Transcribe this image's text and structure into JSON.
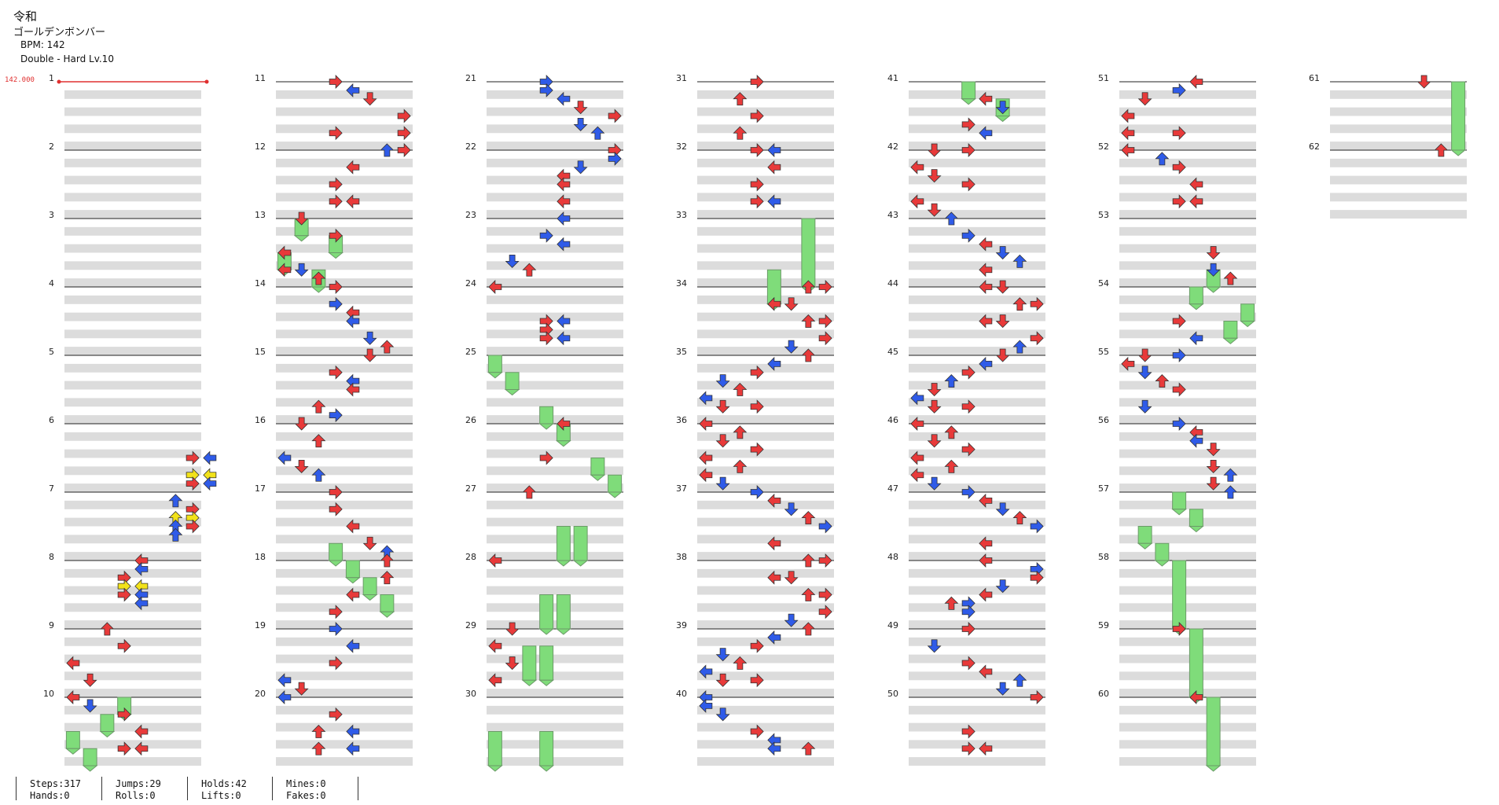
{
  "song": {
    "group": "令和",
    "title": "ゴールデンボンバー",
    "bpm_label": "BPM: 142",
    "difficulty_label": "Double - Hard  Lv.10"
  },
  "bpm_marker": "142.000",
  "measures": {
    "labels": [
      "1",
      "2",
      "3",
      "4",
      "5",
      "6",
      "7",
      "8",
      "9",
      "10",
      "11",
      "12",
      "13",
      "14",
      "15",
      "16",
      "17",
      "18",
      "19",
      "20",
      "21",
      "22",
      "23",
      "24",
      "25",
      "26",
      "27",
      "28",
      "29",
      "30",
      "31",
      "32",
      "33",
      "34",
      "35",
      "36",
      "37",
      "38",
      "39",
      "40",
      "41",
      "42",
      "43",
      "44",
      "45",
      "46",
      "47",
      "48",
      "49",
      "50",
      "51",
      "52",
      "53",
      "54",
      "55",
      "56",
      "57",
      "58",
      "59",
      "60",
      "61",
      "62"
    ],
    "count": 62,
    "per_column": 10
  },
  "stats": {
    "steps": "Steps:317",
    "hands": "Hands:0",
    "jumps": "Jumps:29",
    "rolls": "Rolls:0",
    "holds": "Holds:42",
    "lifts": "Lifts:0",
    "mines": "Mines:0",
    "fakes": "Fakes:0"
  },
  "colors": {
    "quarter_note": "#e83a3a",
    "eighth_note": "#2f5be8",
    "sixteenth_note": "#f2e21a",
    "hold_body": "#7fdc7a",
    "stripe": "#dcdcdc",
    "bpm_line": "#e03030"
  },
  "notes": [
    [
      5.5,
      7,
      "r"
    ],
    [
      5.5,
      8,
      "b"
    ],
    [
      5.75,
      7,
      "y"
    ],
    [
      5.75,
      8,
      "y"
    ],
    [
      5.875,
      7,
      "r"
    ],
    [
      5.875,
      8,
      "b"
    ],
    [
      6.125,
      6,
      "b"
    ],
    [
      6.25,
      7,
      "r"
    ],
    [
      6.375,
      6,
      "y"
    ],
    [
      6.375,
      7,
      "y"
    ],
    [
      6.5,
      6,
      "b"
    ],
    [
      6.5,
      7,
      "r"
    ],
    [
      6.625,
      6,
      "b"
    ],
    [
      7.0,
      4,
      "r"
    ],
    [
      7.125,
      4,
      "b"
    ],
    [
      7.25,
      3,
      "r"
    ],
    [
      7.375,
      3,
      "y"
    ],
    [
      7.375,
      4,
      "y"
    ],
    [
      7.5,
      3,
      "r"
    ],
    [
      7.5,
      4,
      "b"
    ],
    [
      7.625,
      4,
      "b"
    ],
    [
      8.0,
      2,
      "r"
    ],
    [
      8.25,
      3,
      "r"
    ],
    [
      8.5,
      0,
      "r"
    ],
    [
      8.75,
      1,
      "r"
    ],
    [
      9.0,
      0,
      "r"
    ],
    [
      9.125,
      1,
      "b"
    ],
    [
      9.25,
      3,
      "r"
    ],
    [
      9.5,
      4,
      "r"
    ],
    [
      9.75,
      3,
      "r"
    ],
    [
      9.75,
      4,
      "r"
    ],
    [
      10.0,
      3,
      "r"
    ],
    [
      10.125,
      4,
      "b"
    ],
    [
      10.25,
      5,
      "r"
    ],
    [
      10.5,
      7,
      "r"
    ],
    [
      10.75,
      3,
      "r"
    ],
    [
      10.75,
      7,
      "r"
    ],
    [
      11.0,
      6,
      "b"
    ],
    [
      11.0,
      7,
      "r"
    ],
    [
      11.25,
      4,
      "r"
    ],
    [
      11.5,
      3,
      "r"
    ],
    [
      11.75,
      3,
      "r"
    ],
    [
      11.75,
      4,
      "r"
    ],
    [
      12.0,
      1,
      "r"
    ],
    [
      12.25,
      3,
      "r"
    ],
    [
      12.5,
      0,
      "r"
    ],
    [
      12.75,
      0,
      "r"
    ],
    [
      12.75,
      1,
      "b"
    ],
    [
      12.875,
      2,
      "r"
    ],
    [
      13.0,
      3,
      "r"
    ],
    [
      13.25,
      3,
      "b"
    ],
    [
      13.375,
      4,
      "r"
    ],
    [
      13.5,
      4,
      "b"
    ],
    [
      13.75,
      5,
      "b"
    ],
    [
      13.875,
      6,
      "r"
    ],
    [
      14.0,
      5,
      "r"
    ],
    [
      14.25,
      3,
      "r"
    ],
    [
      14.375,
      4,
      "b"
    ],
    [
      14.5,
      4,
      "r"
    ],
    [
      14.75,
      2,
      "r"
    ],
    [
      14.875,
      3,
      "b"
    ],
    [
      15.0,
      1,
      "r"
    ],
    [
      15.25,
      2,
      "r"
    ],
    [
      15.5,
      0,
      "b"
    ],
    [
      15.625,
      1,
      "r"
    ],
    [
      15.75,
      2,
      "b"
    ],
    [
      16.0,
      3,
      "r"
    ],
    [
      16.25,
      3,
      "r"
    ],
    [
      16.5,
      4,
      "r"
    ],
    [
      16.75,
      5,
      "r"
    ],
    [
      16.875,
      6,
      "b"
    ],
    [
      17.0,
      6,
      "r"
    ],
    [
      17.25,
      6,
      "r"
    ],
    [
      17.5,
      4,
      "r"
    ],
    [
      17.75,
      3,
      "r"
    ],
    [
      18.0,
      3,
      "b"
    ],
    [
      18.25,
      4,
      "b"
    ],
    [
      18.5,
      3,
      "r"
    ],
    [
      18.75,
      0,
      "b"
    ],
    [
      18.875,
      1,
      "r"
    ],
    [
      19.0,
      0,
      "b"
    ],
    [
      19.25,
      3,
      "r"
    ],
    [
      19.5,
      2,
      "r"
    ],
    [
      19.5,
      4,
      "b"
    ],
    [
      19.75,
      2,
      "r"
    ],
    [
      19.75,
      4,
      "b"
    ],
    [
      20.0,
      3,
      "b"
    ],
    [
      20.125,
      3,
      "b"
    ],
    [
      20.25,
      4,
      "b"
    ],
    [
      20.375,
      5,
      "r"
    ],
    [
      20.5,
      7,
      "r"
    ],
    [
      20.625,
      5,
      "b"
    ],
    [
      20.75,
      6,
      "b"
    ],
    [
      21.0,
      7,
      "r"
    ],
    [
      21.125,
      7,
      "b"
    ],
    [
      21.25,
      5,
      "b"
    ],
    [
      21.375,
      4,
      "r"
    ],
    [
      21.5,
      4,
      "r"
    ],
    [
      21.75,
      4,
      "r"
    ],
    [
      22.0,
      4,
      "b"
    ],
    [
      22.25,
      3,
      "b"
    ],
    [
      22.375,
      4,
      "b"
    ],
    [
      22.625,
      1,
      "b"
    ],
    [
      22.75,
      2,
      "r"
    ],
    [
      23.0,
      0,
      "r"
    ],
    [
      23.5,
      3,
      "r"
    ],
    [
      23.5,
      4,
      "b"
    ],
    [
      23.625,
      3,
      "r"
    ],
    [
      23.75,
      3,
      "r"
    ],
    [
      23.75,
      4,
      "b"
    ],
    [
      25.0,
      4,
      "r"
    ],
    [
      25.5,
      3,
      "r"
    ],
    [
      26.0,
      2,
      "r"
    ],
    [
      27.0,
      0,
      "r"
    ],
    [
      28.0,
      1,
      "r"
    ],
    [
      28.25,
      0,
      "r"
    ],
    [
      28.5,
      1,
      "r"
    ],
    [
      28.75,
      0,
      "r"
    ],
    [
      30.0,
      3,
      "r"
    ],
    [
      30.25,
      2,
      "r"
    ],
    [
      30.5,
      3,
      "r"
    ],
    [
      30.75,
      2,
      "r"
    ],
    [
      31.0,
      4,
      "b"
    ],
    [
      31.0,
      3,
      "r"
    ],
    [
      31.25,
      4,
      "r"
    ],
    [
      31.5,
      3,
      "r"
    ],
    [
      31.75,
      3,
      "r"
    ],
    [
      31.75,
      4,
      "b"
    ],
    [
      33.0,
      6,
      "r"
    ],
    [
      33.0,
      7,
      "r"
    ],
    [
      33.25,
      4,
      "r"
    ],
    [
      33.25,
      5,
      "r"
    ],
    [
      33.5,
      6,
      "r"
    ],
    [
      33.5,
      7,
      "r"
    ],
    [
      33.75,
      7,
      "r"
    ],
    [
      33.875,
      5,
      "b"
    ],
    [
      34.0,
      6,
      "r"
    ],
    [
      34.125,
      4,
      "b"
    ],
    [
      34.25,
      3,
      "r"
    ],
    [
      34.375,
      1,
      "b"
    ],
    [
      34.5,
      2,
      "r"
    ],
    [
      34.625,
      0,
      "b"
    ],
    [
      34.75,
      3,
      "r"
    ],
    [
      34.75,
      1,
      "r"
    ],
    [
      35.0,
      0,
      "r"
    ],
    [
      35.125,
      2,
      "r"
    ],
    [
      35.25,
      1,
      "r"
    ],
    [
      35.375,
      3,
      "r"
    ],
    [
      35.5,
      0,
      "r"
    ],
    [
      35.625,
      2,
      "r"
    ],
    [
      35.75,
      0,
      "r"
    ],
    [
      35.875,
      1,
      "b"
    ],
    [
      36.0,
      3,
      "b"
    ],
    [
      36.125,
      4,
      "r"
    ],
    [
      36.25,
      5,
      "b"
    ],
    [
      36.375,
      6,
      "r"
    ],
    [
      36.5,
      7,
      "b"
    ],
    [
      36.75,
      4,
      "r"
    ],
    [
      37.0,
      6,
      "r"
    ],
    [
      37.0,
      7,
      "r"
    ],
    [
      37.25,
      4,
      "r"
    ],
    [
      37.25,
      5,
      "r"
    ],
    [
      37.5,
      6,
      "r"
    ],
    [
      37.5,
      7,
      "r"
    ],
    [
      37.75,
      7,
      "r"
    ],
    [
      37.875,
      5,
      "b"
    ],
    [
      38.0,
      6,
      "r"
    ],
    [
      38.125,
      4,
      "b"
    ],
    [
      38.25,
      3,
      "r"
    ],
    [
      38.375,
      1,
      "b"
    ],
    [
      38.5,
      2,
      "r"
    ],
    [
      38.625,
      0,
      "b"
    ],
    [
      38.75,
      3,
      "r"
    ],
    [
      38.75,
      1,
      "r"
    ],
    [
      39.0,
      0,
      "b"
    ],
    [
      39.125,
      0,
      "b"
    ],
    [
      39.25,
      1,
      "b"
    ],
    [
      39.5,
      3,
      "r"
    ],
    [
      39.625,
      4,
      "b"
    ],
    [
      39.75,
      4,
      "b"
    ],
    [
      39.75,
      6,
      "r"
    ],
    [
      40.25,
      4,
      "r"
    ],
    [
      40.375,
      5,
      "b"
    ],
    [
      40.625,
      3,
      "r"
    ],
    [
      40.75,
      4,
      "b"
    ],
    [
      41.0,
      1,
      "r"
    ],
    [
      41.0,
      3,
      "r"
    ],
    [
      41.25,
      0,
      "r"
    ],
    [
      41.375,
      1,
      "r"
    ],
    [
      41.5,
      3,
      "r"
    ],
    [
      41.75,
      0,
      "r"
    ],
    [
      41.875,
      1,
      "r"
    ],
    [
      42.0,
      2,
      "b"
    ],
    [
      42.25,
      3,
      "b"
    ],
    [
      42.375,
      4,
      "r"
    ],
    [
      42.5,
      5,
      "b"
    ],
    [
      42.625,
      6,
      "b"
    ],
    [
      42.75,
      4,
      "r"
    ],
    [
      43.0,
      4,
      "r"
    ],
    [
      43.0,
      5,
      "r"
    ],
    [
      43.25,
      6,
      "r"
    ],
    [
      43.25,
      7,
      "r"
    ],
    [
      43.5,
      4,
      "r"
    ],
    [
      43.5,
      5,
      "r"
    ],
    [
      43.75,
      7,
      "r"
    ],
    [
      43.875,
      6,
      "b"
    ],
    [
      44.0,
      5,
      "r"
    ],
    [
      44.125,
      4,
      "b"
    ],
    [
      44.25,
      3,
      "r"
    ],
    [
      44.375,
      2,
      "b"
    ],
    [
      44.5,
      1,
      "r"
    ],
    [
      44.625,
      0,
      "b"
    ],
    [
      44.75,
      3,
      "r"
    ],
    [
      44.75,
      1,
      "r"
    ],
    [
      45.0,
      0,
      "r"
    ],
    [
      45.125,
      2,
      "r"
    ],
    [
      45.25,
      1,
      "r"
    ],
    [
      45.375,
      3,
      "r"
    ],
    [
      45.5,
      0,
      "r"
    ],
    [
      45.625,
      2,
      "r"
    ],
    [
      45.75,
      0,
      "r"
    ],
    [
      45.875,
      1,
      "b"
    ],
    [
      46.0,
      3,
      "b"
    ],
    [
      46.125,
      4,
      "r"
    ],
    [
      46.25,
      5,
      "b"
    ],
    [
      46.375,
      6,
      "r"
    ],
    [
      46.5,
      7,
      "b"
    ],
    [
      46.75,
      4,
      "r"
    ],
    [
      47.0,
      4,
      "r"
    ],
    [
      47.125,
      7,
      "b"
    ],
    [
      47.25,
      7,
      "r"
    ],
    [
      47.375,
      5,
      "b"
    ],
    [
      47.5,
      4,
      "r"
    ],
    [
      47.625,
      2,
      "r"
    ],
    [
      47.625,
      3,
      "b"
    ],
    [
      47.75,
      3,
      "b"
    ],
    [
      48.0,
      3,
      "r"
    ],
    [
      48.25,
      1,
      "b"
    ],
    [
      48.5,
      3,
      "r"
    ],
    [
      48.625,
      4,
      "r"
    ],
    [
      48.75,
      6,
      "b"
    ],
    [
      48.875,
      5,
      "b"
    ],
    [
      49.0,
      7,
      "r"
    ],
    [
      49.5,
      3,
      "r"
    ],
    [
      49.75,
      3,
      "r"
    ],
    [
      49.75,
      4,
      "r"
    ],
    [
      50.0,
      4,
      "r"
    ],
    [
      50.125,
      3,
      "b"
    ],
    [
      50.25,
      1,
      "r"
    ],
    [
      50.5,
      0,
      "r"
    ],
    [
      50.75,
      0,
      "r"
    ],
    [
      50.75,
      3,
      "r"
    ],
    [
      51.0,
      0,
      "r"
    ],
    [
      51.125,
      2,
      "b"
    ],
    [
      51.25,
      3,
      "r"
    ],
    [
      51.5,
      4,
      "r"
    ],
    [
      51.75,
      3,
      "r"
    ],
    [
      51.75,
      4,
      "r"
    ],
    [
      52.5,
      5,
      "r"
    ],
    [
      52.75,
      5,
      "b"
    ],
    [
      52.875,
      6,
      "r"
    ],
    [
      53.5,
      3,
      "r"
    ],
    [
      53.75,
      4,
      "b"
    ],
    [
      54.0,
      1,
      "r"
    ],
    [
      54.0,
      3,
      "b"
    ],
    [
      54.125,
      0,
      "r"
    ],
    [
      54.25,
      1,
      "b"
    ],
    [
      54.375,
      2,
      "r"
    ],
    [
      54.5,
      3,
      "r"
    ],
    [
      54.75,
      1,
      "b"
    ],
    [
      55.0,
      3,
      "b"
    ],
    [
      55.125,
      4,
      "r"
    ],
    [
      55.25,
      4,
      "b"
    ],
    [
      55.375,
      5,
      "r"
    ],
    [
      55.625,
      5,
      "r"
    ],
    [
      55.75,
      6,
      "b"
    ],
    [
      55.875,
      5,
      "r"
    ],
    [
      56.0,
      6,
      "b"
    ],
    [
      58.0,
      3,
      "r"
    ],
    [
      59.0,
      4,
      "r"
    ],
    [
      60.0,
      5,
      "r"
    ],
    [
      61.0,
      6,
      "r"
    ]
  ],
  "holds": [
    [
      9.0,
      9.25,
      3
    ],
    [
      9.25,
      9.5,
      2
    ],
    [
      9.5,
      9.75,
      0
    ],
    [
      9.75,
      10.0,
      1
    ],
    [
      12.0,
      12.25,
      1
    ],
    [
      12.25,
      12.5,
      3
    ],
    [
      12.5,
      12.75,
      0
    ],
    [
      12.75,
      13.0,
      2
    ],
    [
      16.75,
      17.0,
      3
    ],
    [
      17.0,
      17.25,
      4
    ],
    [
      17.25,
      17.5,
      5
    ],
    [
      17.5,
      17.75,
      6
    ],
    [
      24.0,
      24.25,
      0
    ],
    [
      24.25,
      24.5,
      1
    ],
    [
      24.75,
      25.0,
      3
    ],
    [
      25.0,
      25.25,
      4
    ],
    [
      25.5,
      25.75,
      6
    ],
    [
      25.75,
      26.0,
      7
    ],
    [
      26.5,
      27.0,
      4
    ],
    [
      26.5,
      27.0,
      5
    ],
    [
      27.5,
      28.0,
      3
    ],
    [
      27.5,
      28.0,
      4
    ],
    [
      28.25,
      28.75,
      2
    ],
    [
      28.25,
      28.75,
      3
    ],
    [
      29.5,
      30.0,
      0
    ],
    [
      29.5,
      30.0,
      3
    ],
    [
      32.75,
      33.25,
      4
    ],
    [
      32.0,
      33.0,
      6
    ],
    [
      40.0,
      40.25,
      3
    ],
    [
      40.25,
      40.5,
      5
    ],
    [
      52.75,
      53.0,
      5
    ],
    [
      53.0,
      53.25,
      4
    ],
    [
      53.25,
      53.5,
      7
    ],
    [
      53.5,
      53.75,
      6
    ],
    [
      56.0,
      56.25,
      3
    ],
    [
      56.25,
      56.5,
      4
    ],
    [
      56.5,
      56.75,
      1
    ],
    [
      56.75,
      57.0,
      2
    ],
    [
      57.0,
      58.0,
      3
    ],
    [
      58.0,
      59.0,
      4
    ],
    [
      59.0,
      60.0,
      5
    ],
    [
      60.0,
      61.0,
      7
    ]
  ]
}
